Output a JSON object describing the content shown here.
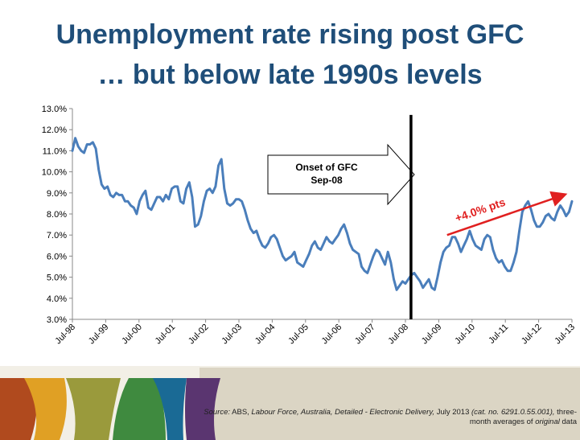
{
  "page": {
    "title_line1": "Unemployment rate rising post GFC",
    "title_line2": "… but below late 1990s levels"
  },
  "chart_data": {
    "type": "line",
    "ylim": [
      3.0,
      13.0
    ],
    "ytick_step": 1.0,
    "ytick_labels": [
      "3.0%",
      "4.0%",
      "5.0%",
      "6.0%",
      "7.0%",
      "8.0%",
      "9.0%",
      "10.0%",
      "11.0%",
      "12.0%",
      "13.0%"
    ],
    "xtick_labels": [
      "Jul-98",
      "Jul-99",
      "Jul-00",
      "Jul-01",
      "Jul-02",
      "Jul-03",
      "Jul-04",
      "Jul-05",
      "Jul-06",
      "Jul-07",
      "Jul-08",
      "Jul-09",
      "Jul-10",
      "Jul-11",
      "Jul-12",
      "Jul-13"
    ],
    "x_start": "Jul-98",
    "x_end": "Jul-13",
    "grid": false,
    "series": [
      {
        "color": "#4a7ebb",
        "frequency": "monthly",
        "values": [
          11.0,
          11.6,
          11.2,
          11.0,
          10.9,
          11.3,
          11.3,
          11.4,
          11.1,
          10.1,
          9.4,
          9.2,
          9.3,
          8.9,
          8.8,
          9.0,
          8.9,
          8.9,
          8.6,
          8.6,
          8.4,
          8.3,
          8.0,
          8.6,
          8.9,
          9.1,
          8.3,
          8.2,
          8.5,
          8.8,
          8.8,
          8.6,
          8.9,
          8.7,
          9.2,
          9.3,
          9.3,
          8.6,
          8.5,
          9.2,
          9.5,
          8.8,
          7.4,
          7.5,
          7.9,
          8.6,
          9.1,
          9.2,
          9.0,
          9.3,
          10.3,
          10.6,
          9.2,
          8.5,
          8.4,
          8.5,
          8.7,
          8.7,
          8.6,
          8.2,
          7.7,
          7.3,
          7.1,
          7.2,
          6.8,
          6.5,
          6.4,
          6.6,
          6.9,
          7.0,
          6.8,
          6.4,
          6.0,
          5.8,
          5.9,
          6.0,
          6.2,
          5.7,
          5.6,
          5.5,
          5.8,
          6.1,
          6.5,
          6.7,
          6.4,
          6.3,
          6.6,
          6.9,
          6.7,
          6.6,
          6.8,
          7.0,
          7.3,
          7.5,
          7.1,
          6.6,
          6.3,
          6.2,
          6.1,
          5.5,
          5.3,
          5.2,
          5.6,
          6.0,
          6.3,
          6.2,
          5.9,
          5.6,
          6.2,
          5.7,
          4.9,
          4.4,
          4.6,
          4.8,
          4.7,
          4.9,
          5.1,
          5.2,
          5.0,
          4.8,
          4.5,
          4.7,
          4.9,
          4.5,
          4.4,
          5.0,
          5.7,
          6.2,
          6.4,
          6.5,
          6.9,
          6.9,
          6.6,
          6.2,
          6.5,
          6.8,
          7.2,
          6.8,
          6.5,
          6.4,
          6.3,
          6.8,
          7.0,
          6.9,
          6.3,
          5.9,
          5.7,
          5.8,
          5.5,
          5.3,
          5.3,
          5.7,
          6.2,
          7.2,
          8.1,
          8.4,
          8.6,
          8.2,
          7.7,
          7.4,
          7.4,
          7.6,
          7.9,
          8.0,
          7.8,
          7.7,
          8.1,
          8.4,
          8.2,
          7.9,
          8.1,
          8.6
        ]
      }
    ],
    "annotations": [
      {
        "kind": "arrow-callout",
        "text_line1": "Onset of GFC",
        "text_line2": "Sep-08",
        "at": "Sep-08"
      },
      {
        "kind": "trend-arrow",
        "text": "+4.0% pts",
        "color": "#e02020",
        "from": {
          "x": "Oct-09",
          "y": 7.0
        },
        "to": {
          "x": "Apr-13",
          "y": 8.9
        }
      }
    ]
  },
  "footer": {
    "source_label": "Source:",
    "source_org": "ABS,",
    "source_title": "Labour Force, Australia, Detailed - Electronic Delivery,",
    "source_date": "July 2013",
    "source_cat": "(cat. no. 6291.0.55.001),",
    "source_note_pre": "three-month averages of",
    "source_note_em": "original",
    "source_note_post": "data"
  },
  "colors": {
    "title": "#1f4e79",
    "line": "#4a7ebb",
    "gfc_marker": "#000000",
    "trend_arrow": "#e02020"
  }
}
